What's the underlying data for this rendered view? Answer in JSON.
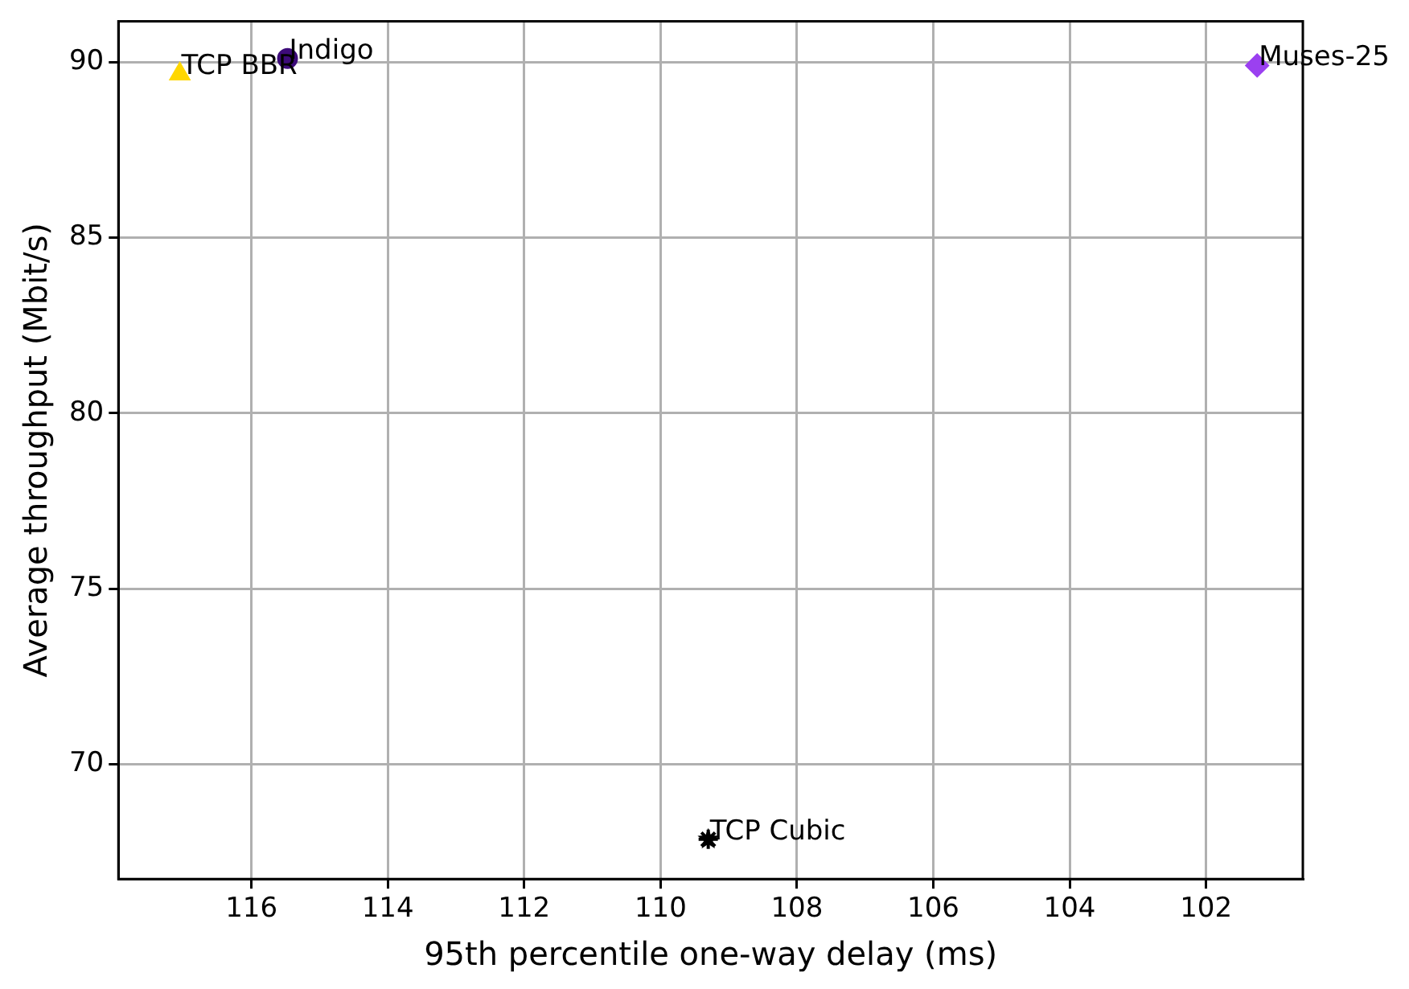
{
  "chart_data": {
    "type": "scatter",
    "xlabel": "95th percentile one-way delay (ms)",
    "ylabel": "Average throughput (Mbit/s)",
    "xlim": [
      117.95,
      100.58
    ],
    "xticks": [
      116,
      114,
      112,
      110,
      108,
      106,
      104,
      102
    ],
    "ylim": [
      66.73,
      91.16
    ],
    "yticks": [
      70,
      75,
      80,
      85,
      90
    ],
    "grid": true,
    "series": [
      {
        "name": "TCP BBR",
        "color": "#ffd700",
        "marker": "triangle",
        "x": [
          117.05
        ],
        "values": [
          89.66
        ]
      },
      {
        "name": "Indigo",
        "color": "#3d0b7a",
        "marker": "circle",
        "x": [
          115.47
        ],
        "values": [
          90.1
        ]
      },
      {
        "name": "Muses-25",
        "color": "#9b40f0",
        "marker": "diamond",
        "x": [
          101.25
        ],
        "values": [
          89.9
        ]
      },
      {
        "name": "TCP Cubic",
        "color": "#000000",
        "marker": "star",
        "x": [
          109.3
        ],
        "values": [
          67.86
        ]
      }
    ]
  }
}
